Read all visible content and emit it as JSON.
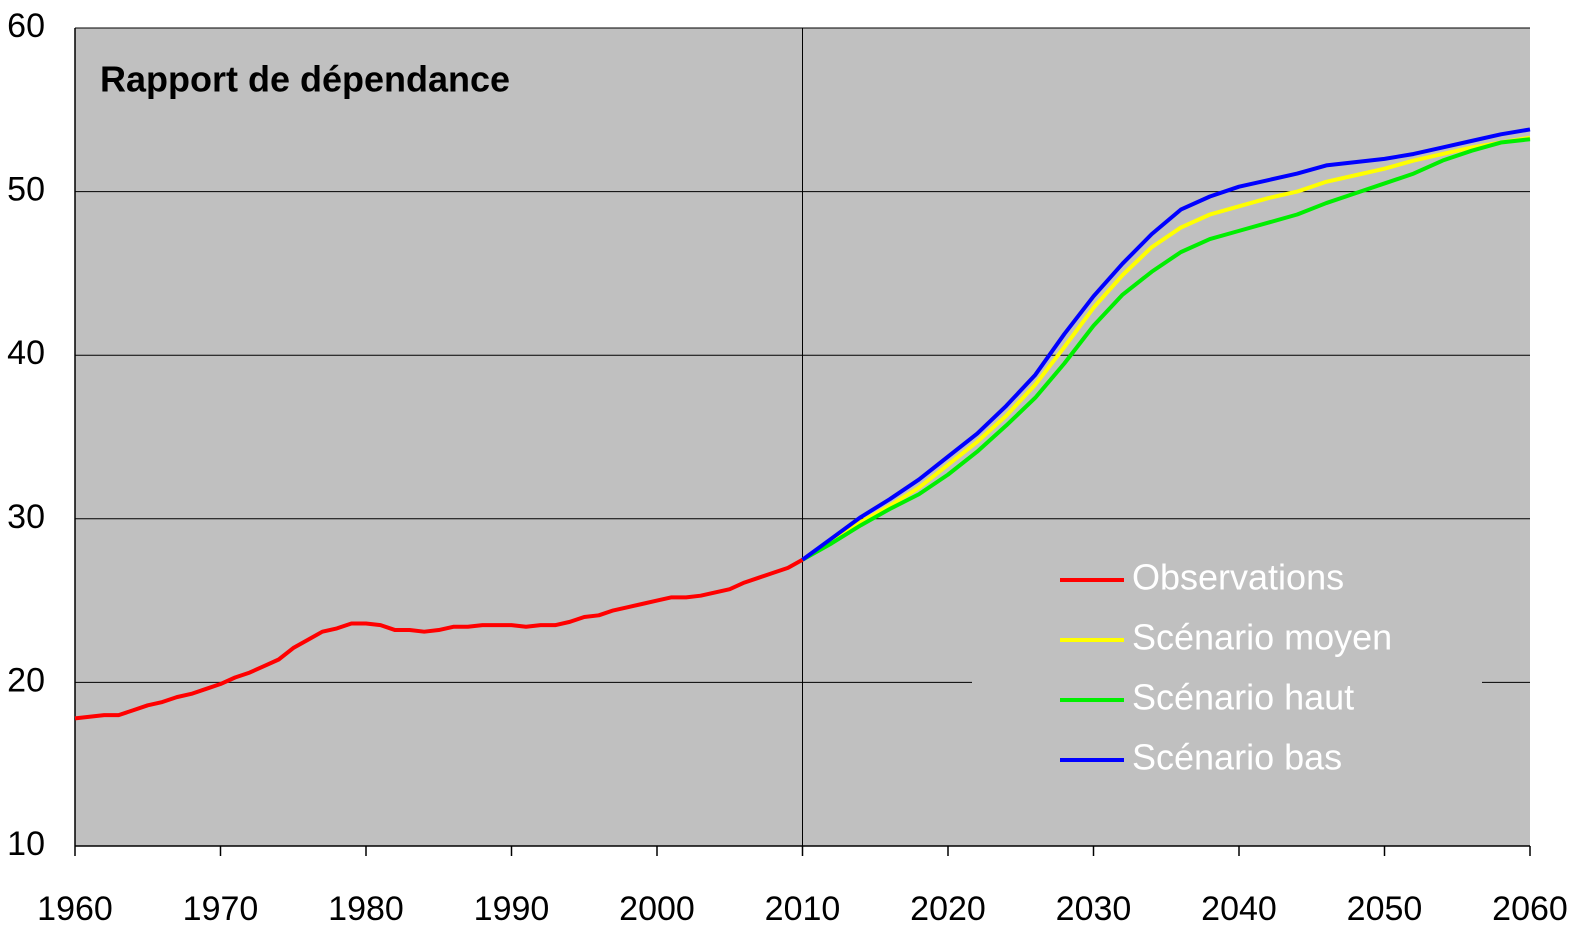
{
  "chart_data": {
    "type": "line",
    "title": "Rapport de dépendance",
    "xlim": [
      1960,
      2060
    ],
    "xticks": [
      1960,
      1970,
      1980,
      1990,
      2000,
      2010,
      2020,
      2030,
      2040,
      2050,
      2060
    ],
    "ylim": [
      10,
      60
    ],
    "yticks": [
      10,
      20,
      30,
      40,
      50,
      60
    ],
    "grid": true,
    "vline_x": 2010,
    "legend": "lower right",
    "series": [
      {
        "name": "Observations",
        "color": "#ff0000",
        "x": [
          1960,
          1961,
          1962,
          1963,
          1964,
          1965,
          1966,
          1967,
          1968,
          1969,
          1970,
          1971,
          1972,
          1973,
          1974,
          1975,
          1976,
          1977,
          1978,
          1979,
          1980,
          1981,
          1982,
          1983,
          1984,
          1985,
          1986,
          1987,
          1988,
          1989,
          1990,
          1991,
          1992,
          1993,
          1994,
          1995,
          1996,
          1997,
          1998,
          1999,
          2000,
          2001,
          2002,
          2003,
          2004,
          2005,
          2006,
          2007,
          2008,
          2009,
          2010
        ],
        "values": [
          17.8,
          17.9,
          18.0,
          18.0,
          18.3,
          18.6,
          18.8,
          19.1,
          19.3,
          19.6,
          19.9,
          20.3,
          20.6,
          21.0,
          21.4,
          22.1,
          22.6,
          23.1,
          23.3,
          23.6,
          23.6,
          23.5,
          23.2,
          23.2,
          23.1,
          23.2,
          23.4,
          23.4,
          23.5,
          23.5,
          23.5,
          23.4,
          23.5,
          23.5,
          23.7,
          24.0,
          24.1,
          24.4,
          24.6,
          24.8,
          25.0,
          25.2,
          25.2,
          25.3,
          25.5,
          25.7,
          26.1,
          26.4,
          26.7,
          27.0,
          27.5
        ]
      },
      {
        "name": "Scénario moyen",
        "color": "#ffff00",
        "x": [
          2010,
          2012,
          2014,
          2016,
          2018,
          2020,
          2022,
          2024,
          2026,
          2028,
          2030,
          2032,
          2034,
          2036,
          2038,
          2040,
          2042,
          2044,
          2046,
          2048,
          2050,
          2052,
          2054,
          2056,
          2058,
          2060
        ],
        "values": [
          27.5,
          28.6,
          29.8,
          30.8,
          31.9,
          33.3,
          34.7,
          36.3,
          38.2,
          40.5,
          42.9,
          44.9,
          46.6,
          47.8,
          48.6,
          49.1,
          49.6,
          50.0,
          50.6,
          51.0,
          51.4,
          51.9,
          52.3,
          52.7,
          53.0,
          53.3
        ]
      },
      {
        "name": "Scénario haut",
        "color": "#00ee00",
        "x": [
          2010,
          2012,
          2014,
          2016,
          2018,
          2020,
          2022,
          2024,
          2026,
          2028,
          2030,
          2032,
          2034,
          2036,
          2038,
          2040,
          2042,
          2044,
          2046,
          2048,
          2050,
          2052,
          2054,
          2056,
          2058,
          2060
        ],
        "values": [
          27.5,
          28.5,
          29.6,
          30.6,
          31.5,
          32.7,
          34.1,
          35.7,
          37.4,
          39.5,
          41.8,
          43.7,
          45.1,
          46.3,
          47.1,
          47.6,
          48.1,
          48.6,
          49.3,
          49.9,
          50.5,
          51.1,
          51.9,
          52.5,
          53.0,
          53.2
        ]
      },
      {
        "name": "Scénario bas",
        "color": "#0000ff",
        "x": [
          2010,
          2012,
          2014,
          2016,
          2018,
          2020,
          2022,
          2024,
          2026,
          2028,
          2030,
          2032,
          2034,
          2036,
          2038,
          2040,
          2042,
          2044,
          2046,
          2048,
          2050,
          2052,
          2054,
          2056,
          2058,
          2060
        ],
        "values": [
          27.5,
          28.8,
          30.1,
          31.2,
          32.4,
          33.8,
          35.2,
          36.9,
          38.8,
          41.3,
          43.6,
          45.6,
          47.4,
          48.9,
          49.7,
          50.3,
          50.7,
          51.1,
          51.6,
          51.8,
          52.0,
          52.3,
          52.7,
          53.1,
          53.5,
          53.8
        ]
      }
    ]
  }
}
